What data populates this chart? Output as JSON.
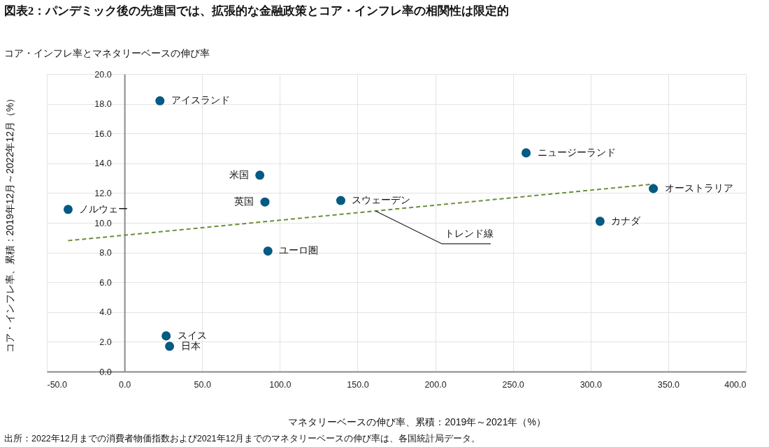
{
  "chart_data": {
    "type": "scatter",
    "title": "図表2：パンデミック後の先進国では、拡張的な金融政策とコア・インフレ率の相関性は限定的",
    "subtitle": "コア・インフレ率とマネタリーベースの伸び率",
    "xlabel": "マネタリーベースの伸び率、累積：2019年～2021年（%）",
    "ylabel": "コア・インフレ率、累積：2019年12月～2022年12月（%）",
    "annotations": [
      "出所：2022年12月までの消費者物価指数および2021年12月までのマネタリーベースの伸び率は、各国統計局データ。"
    ],
    "series": [
      {
        "name": "アイスランド",
        "color": "#035a83",
        "x": [
          22.8
        ],
        "values": [
          18.2
        ]
      },
      {
        "name": "ニュージーランド",
        "color": "#035a83",
        "x": [
          258.5
        ],
        "values": [
          14.7
        ]
      },
      {
        "name": "米国",
        "color": "#035a83",
        "x": [
          87.1
        ],
        "values": [
          13.2
        ]
      },
      {
        "name": "オーストラリア",
        "color": "#035a83",
        "x": [
          340.4
        ],
        "values": [
          12.3
        ]
      },
      {
        "name": "スウェーデン",
        "color": "#035a83",
        "x": [
          139.2
        ],
        "values": [
          11.5
        ]
      },
      {
        "name": "英国",
        "color": "#035a83",
        "x": [
          90.4
        ],
        "values": [
          11.4
        ]
      },
      {
        "name": "ノルウェー",
        "color": "#035a83",
        "x": [
          -36.3
        ],
        "values": [
          10.9
        ]
      },
      {
        "name": "カナダ",
        "color": "#035a83",
        "x": [
          306.1
        ],
        "values": [
          10.1
        ]
      },
      {
        "name": "ユーロ圏",
        "color": "#035a83",
        "x": [
          92.3
        ],
        "values": [
          8.1
        ]
      },
      {
        "name": "スイス",
        "color": "#035a83",
        "x": [
          26.8
        ],
        "values": [
          2.4
        ]
      },
      {
        "name": "日本",
        "color": "#035a83",
        "x": [
          29.0
        ],
        "values": [
          1.7
        ]
      },
      {
        "name": "トレンド線",
        "type": "line",
        "line_style": "dashed",
        "marker": "none",
        "color": "#6b8e3a",
        "x": [
          -36.3,
          340.4
        ],
        "values": [
          8.8,
          12.6
        ]
      }
    ],
    "xlim": [
      -50,
      400
    ],
    "xticks": [
      {
        "value": -50,
        "label": "-50.0"
      },
      {
        "value": 0,
        "label": "0.0"
      },
      {
        "value": 50,
        "label": "50.0"
      },
      {
        "value": 100,
        "label": "100.0"
      },
      {
        "value": 150,
        "label": "150.0"
      },
      {
        "value": 200,
        "label": "200.0"
      },
      {
        "value": 250,
        "label": "250.0"
      },
      {
        "value": 300,
        "label": "300.0"
      },
      {
        "value": 350,
        "label": "350.0"
      },
      {
        "value": 400,
        "label": "400.0"
      }
    ],
    "ylim": [
      0,
      20
    ],
    "yticks": [
      {
        "value": 0,
        "label": "0.0"
      },
      {
        "value": 2,
        "label": "2.0"
      },
      {
        "value": 4,
        "label": "4.0"
      },
      {
        "value": 6,
        "label": "6.0"
      },
      {
        "value": 8,
        "label": "8.0"
      },
      {
        "value": 10,
        "label": "10.0"
      },
      {
        "value": 12,
        "label": "12.0"
      },
      {
        "value": 14,
        "label": "14.0"
      },
      {
        "value": 16,
        "label": "16.0"
      },
      {
        "value": 18,
        "label": "18.0"
      },
      {
        "value": 20,
        "label": "20.0"
      }
    ],
    "grid": true,
    "marker": "circle"
  }
}
